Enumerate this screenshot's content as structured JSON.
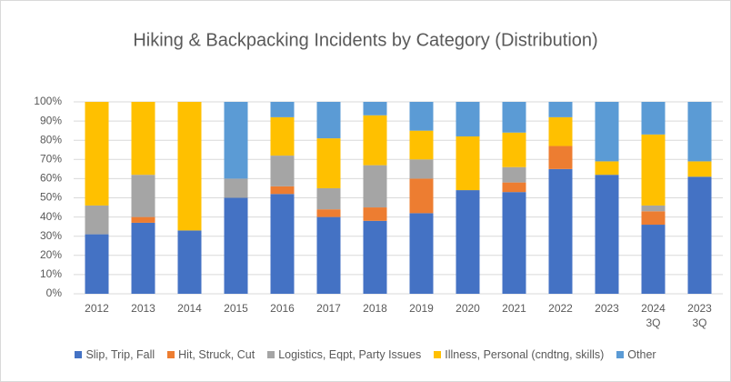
{
  "chart_data": {
    "type": "stacked_bar_100",
    "title": "Hiking & Backpacking Incidents by Category (Distribution)",
    "categories": [
      "2012",
      "2013",
      "2014",
      "2015",
      "2016",
      "2017",
      "2018",
      "2019",
      "2020",
      "2021",
      "2022",
      "2023",
      "2024 3Q",
      "2023 3Q"
    ],
    "series": [
      {
        "name": "Slip, Trip, Fall",
        "color": "#4472c4",
        "values": [
          31,
          37,
          33,
          50,
          52,
          40,
          38,
          42,
          54,
          53,
          65,
          62,
          36,
          61
        ]
      },
      {
        "name": "Hit, Struck, Cut",
        "color": "#ed7d31",
        "values": [
          0,
          3,
          0,
          0,
          4,
          4,
          7,
          18,
          0,
          5,
          12,
          0,
          7,
          0
        ]
      },
      {
        "name": "Logistics, Eqpt, Party Issues",
        "color": "#a5a5a5",
        "values": [
          15,
          22,
          0,
          10,
          16,
          11,
          22,
          10,
          0,
          8,
          0,
          0,
          3,
          0
        ]
      },
      {
        "name": "Illness, Personal (cndtng, skills)",
        "color": "#ffc000",
        "values": [
          54,
          38,
          67,
          0,
          20,
          26,
          26,
          15,
          28,
          18,
          15,
          7,
          37,
          8
        ]
      },
      {
        "name": "Other",
        "color": "#5b9bd5",
        "values": [
          0,
          0,
          0,
          40,
          8,
          19,
          7,
          15,
          18,
          16,
          8,
          31,
          17,
          31
        ]
      }
    ],
    "ylim": [
      0,
      100
    ],
    "yticks": [
      {
        "value": 0,
        "label": "0%"
      },
      {
        "value": 10,
        "label": "10%"
      },
      {
        "value": 20,
        "label": "20%"
      },
      {
        "value": 30,
        "label": "30%"
      },
      {
        "value": 40,
        "label": "40%"
      },
      {
        "value": 50,
        "label": "50%"
      },
      {
        "value": 60,
        "label": "60%"
      },
      {
        "value": 70,
        "label": "70%"
      },
      {
        "value": 80,
        "label": "80%"
      },
      {
        "value": 90,
        "label": "90%"
      },
      {
        "value": 100,
        "label": "100%"
      }
    ],
    "grid": true,
    "legend": "bottom"
  }
}
